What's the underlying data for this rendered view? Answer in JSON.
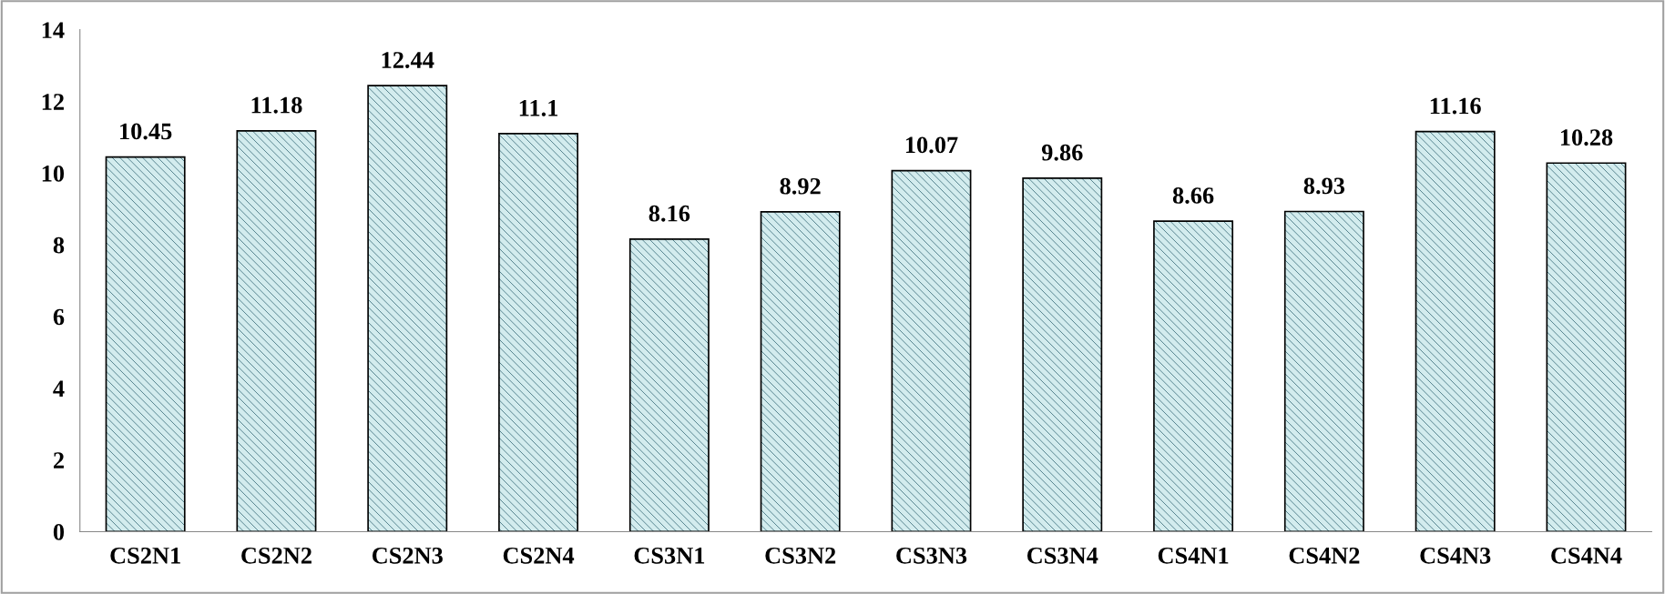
{
  "chart_data": {
    "type": "bar",
    "categories": [
      "CS2N1",
      "CS2N2",
      "CS2N3",
      "CS2N4",
      "CS3N1",
      "CS3N2",
      "CS3N3",
      "CS3N4",
      "CS4N1",
      "CS4N2",
      "CS4N3",
      "CS4N4"
    ],
    "values": [
      10.45,
      11.18,
      12.44,
      11.1,
      8.16,
      8.92,
      10.07,
      9.86,
      8.66,
      8.93,
      11.16,
      10.28
    ],
    "color": "#d3ecee",
    "ylim": [
      0,
      14
    ],
    "yticks": [
      0,
      2,
      4,
      6,
      8,
      10,
      12,
      14
    ],
    "data_labels": true
  }
}
